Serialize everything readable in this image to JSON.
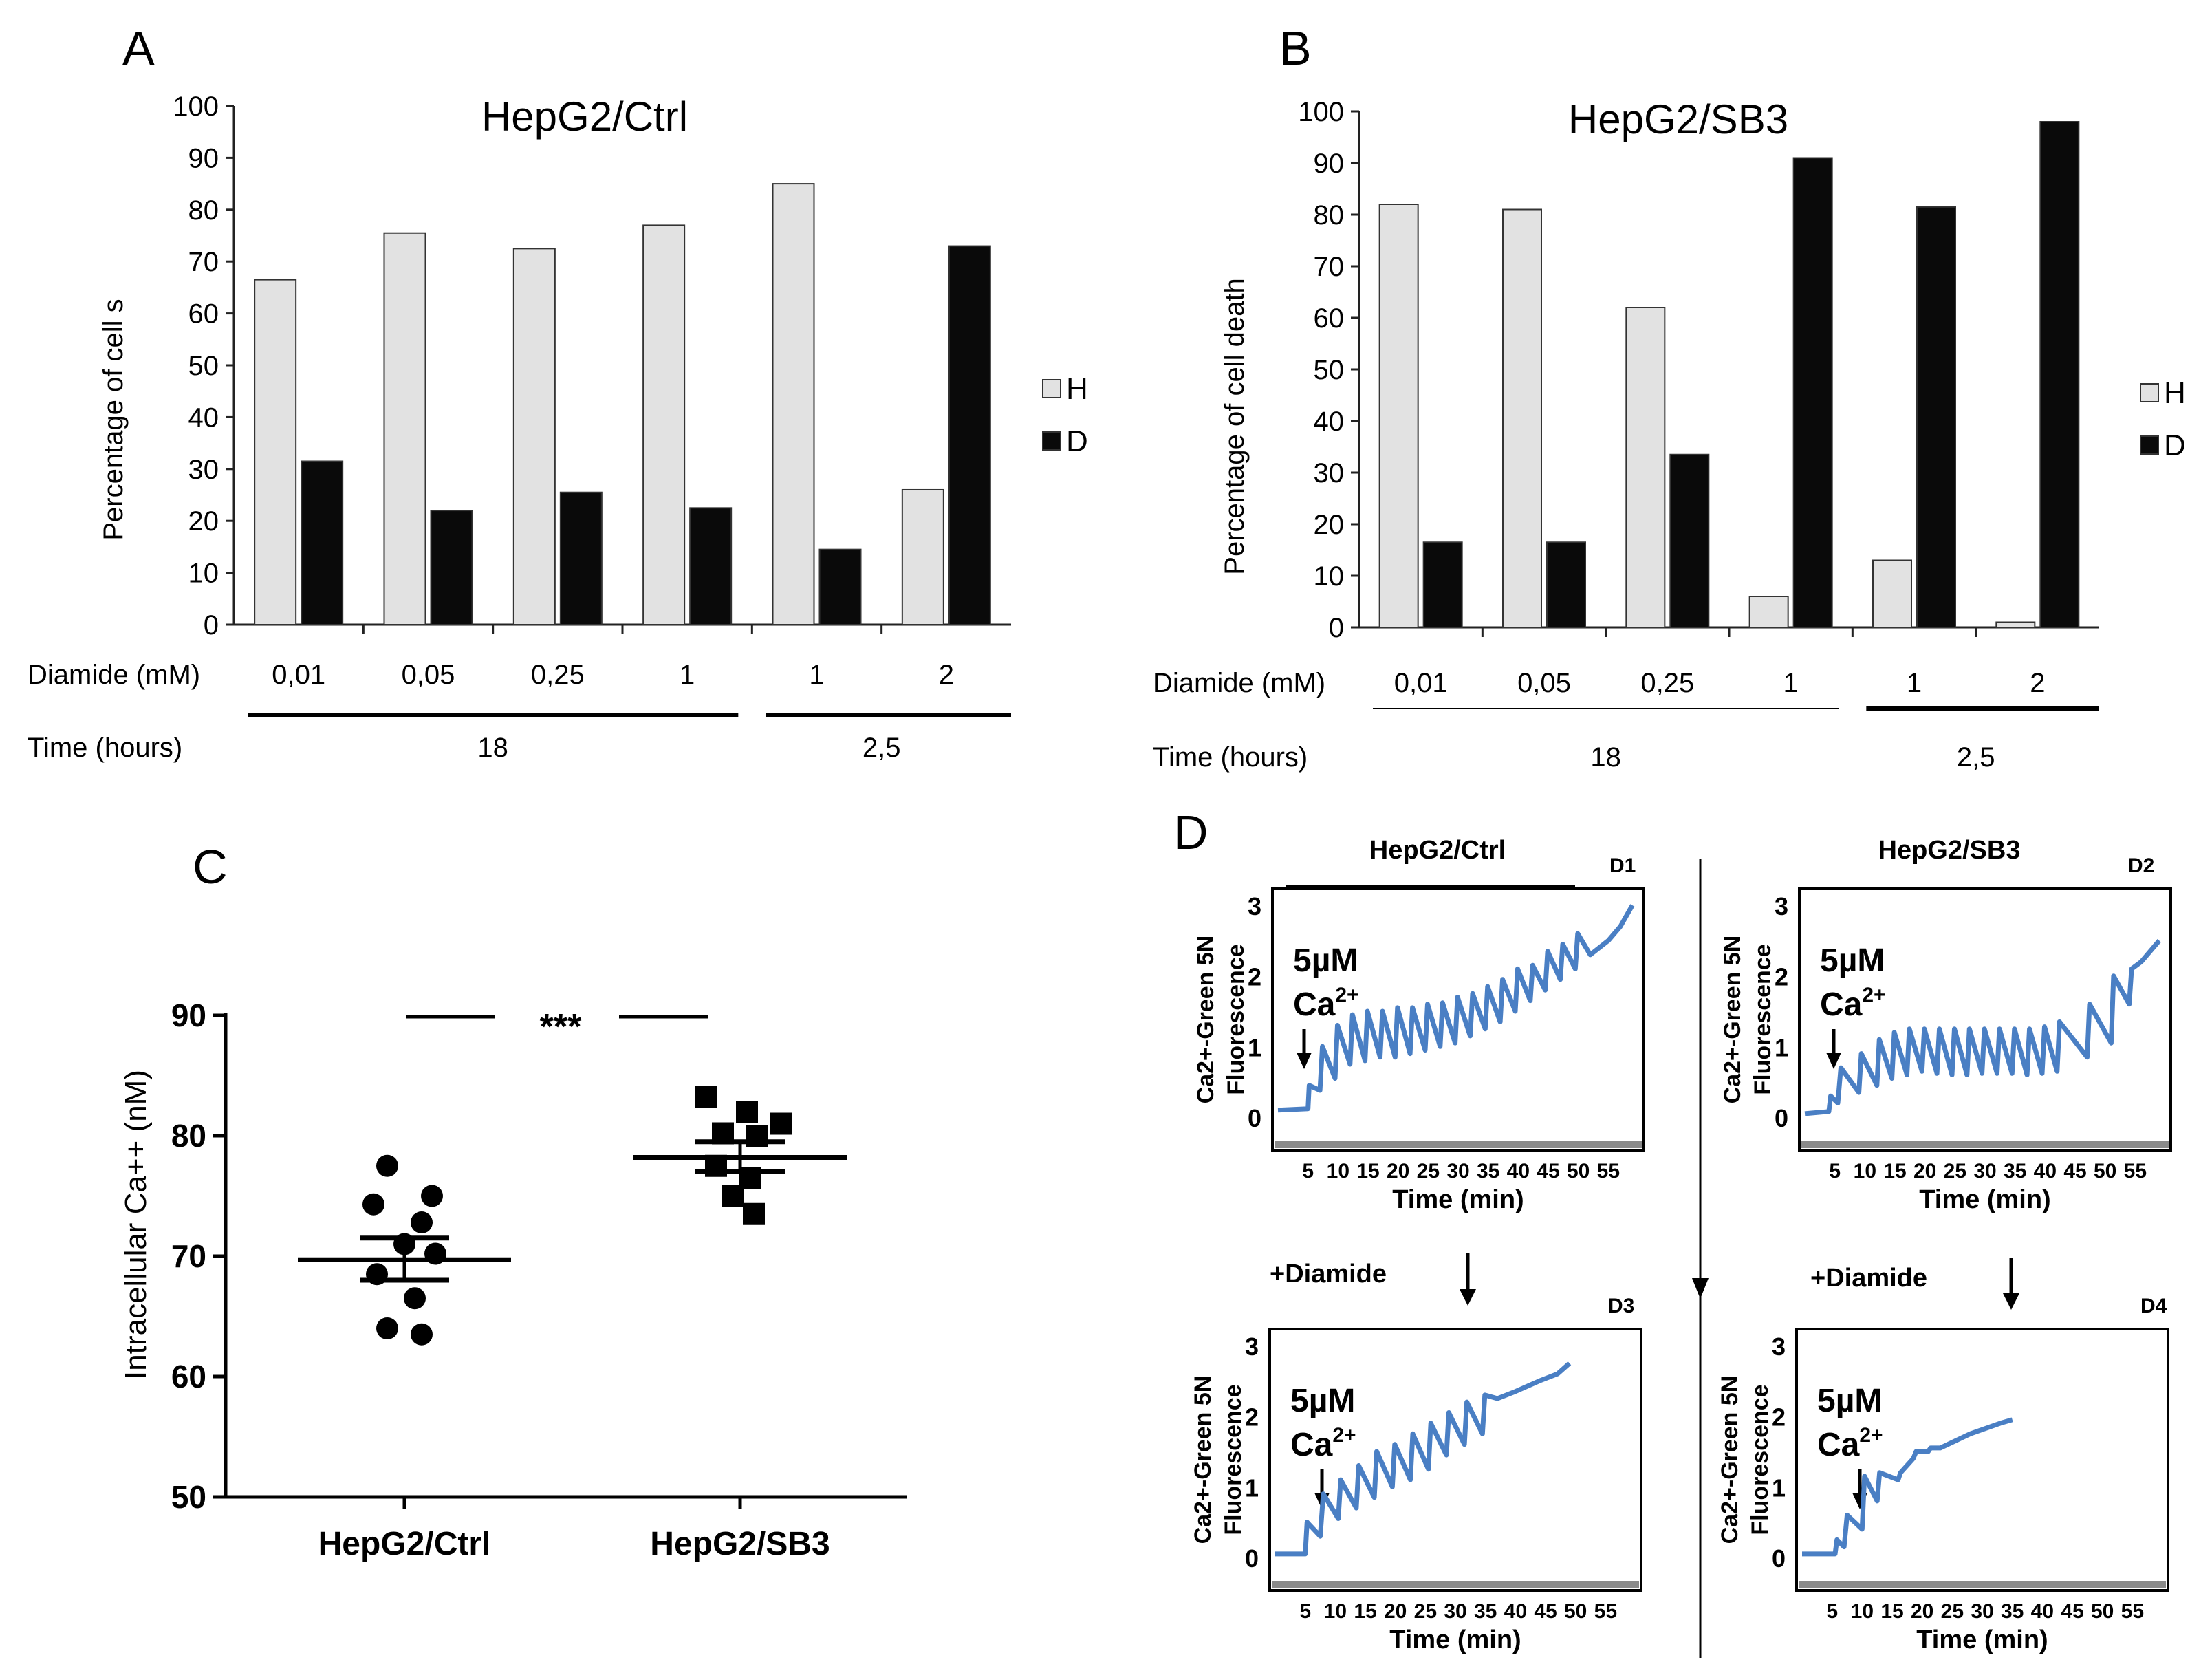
{
  "panel_letters": {
    "a": "A",
    "b": "B",
    "c": "C",
    "d": "D"
  },
  "colors": {
    "light_bar": "#e2e2e2",
    "dark_bar": "#0a0a0a",
    "trace": "#4a7fc4",
    "axis": "#222222",
    "frame_bottom": "#8a8a8a"
  },
  "row_labels": {
    "diamide": "Diamide (mM)",
    "time": "Time (hours)"
  },
  "chart_data": [
    {
      "id": "A",
      "type": "bar",
      "title": "HepG2/Ctrl",
      "ylabel": "Percentage  of  cell s",
      "ylim": [
        0,
        100
      ],
      "yticks": [
        "0",
        "10",
        "20",
        "30",
        "40",
        "50",
        "60",
        "70",
        "80",
        "90",
        "100"
      ],
      "categories": [
        "0,01",
        "0,05",
        "0,25",
        "1",
        "1",
        "2"
      ],
      "time_groups": [
        "18",
        "2,5"
      ],
      "series": [
        {
          "name": "H",
          "values": [
            66.5,
            75.5,
            72.5,
            77,
            85,
            26
          ]
        },
        {
          "name": "D",
          "values": [
            31.5,
            22,
            25.5,
            22.5,
            14.5,
            73
          ]
        }
      ],
      "legend": "right"
    },
    {
      "id": "B",
      "type": "bar",
      "title": "HepG2/SB3",
      "ylabel": "Percentage  of  cell death",
      "ylim": [
        0,
        100
      ],
      "yticks": [
        "0",
        "10",
        "20",
        "30",
        "40",
        "50",
        "60",
        "70",
        "80",
        "90",
        "100"
      ],
      "categories": [
        "0,01",
        "0,05",
        "0,25",
        "1",
        "1",
        "2"
      ],
      "time_groups": [
        "18",
        "2,5"
      ],
      "series": [
        {
          "name": "H",
          "values": [
            82,
            81,
            62,
            6,
            13,
            1
          ]
        },
        {
          "name": "D",
          "values": [
            16.5,
            16.5,
            33.5,
            91,
            81.5,
            98
          ]
        }
      ],
      "legend": "right"
    },
    {
      "id": "C",
      "type": "scatter",
      "ylabel": "Intracellular Ca++ (nM)",
      "ylim": [
        50,
        90
      ],
      "yticks": [
        "50",
        "60",
        "70",
        "80",
        "90"
      ],
      "categories": [
        "HepG2/Ctrl",
        "HepG2/SB3"
      ],
      "significance": "***",
      "groups": [
        {
          "name": "HepG2/Ctrl",
          "marker": "circle",
          "mean": 69.7,
          "sem_upper": 71.5,
          "sem_lower": 68.0,
          "points": [
            77.5,
            75.0,
            74.3,
            72.8,
            71.0,
            70.2,
            68.5,
            66.5,
            64.0,
            63.5
          ]
        },
        {
          "name": "HepG2/SB3",
          "marker": "square",
          "mean": 78.2,
          "sem_upper": 79.5,
          "sem_lower": 77.0,
          "points": [
            83.2,
            82.0,
            81.0,
            80.2,
            80.0,
            77.5,
            76.5,
            75.0,
            73.5
          ]
        }
      ]
    },
    {
      "id": "D",
      "type": "line",
      "subpanels": [
        {
          "tag": "D1",
          "header": "HepG2/Ctrl",
          "inset_top": "",
          "yticks": [
            "0",
            "1",
            "2",
            "3"
          ],
          "xticks": [
            "5",
            "10",
            "15",
            "20",
            "25",
            "30",
            "35",
            "40",
            "45",
            "50",
            "55"
          ],
          "xlabel": "Time (min)",
          "ylabel_line1": "Ca2+-Green 5N",
          "ylabel_line2": "Fluorescence",
          "annotation_line1": "5µM",
          "annotation_line2": "Ca",
          "annotation_sup": "2+",
          "x": [
            0,
            5,
            5.2,
            7,
            7.4,
            9.5,
            9.9,
            12,
            12.4,
            14.5,
            14.9,
            17,
            17.4,
            19.5,
            19.9,
            22,
            22.4,
            24.5,
            24.9,
            27,
            27.4,
            29.5,
            29.9,
            32,
            32.4,
            34.5,
            34.9,
            37,
            37.4,
            39.5,
            39.9,
            42,
            42.4,
            44.5,
            44.9,
            47,
            47.4,
            49.5,
            49.9,
            52,
            55,
            57,
            59
          ],
          "y": [
            0.1,
            0.12,
            0.45,
            0.38,
            1.0,
            0.55,
            1.3,
            0.75,
            1.45,
            0.8,
            1.5,
            0.85,
            1.5,
            0.85,
            1.55,
            0.9,
            1.55,
            0.95,
            1.6,
            1.0,
            1.62,
            1.05,
            1.7,
            1.15,
            1.75,
            1.25,
            1.85,
            1.35,
            1.95,
            1.5,
            2.1,
            1.65,
            2.15,
            1.8,
            2.35,
            1.95,
            2.45,
            2.1,
            2.6,
            2.3,
            2.5,
            2.7,
            3.0
          ]
        },
        {
          "tag": "D2",
          "header": "HepG2/SB3",
          "inset_top": "",
          "yticks": [
            "0",
            "1",
            "2",
            "3"
          ],
          "xticks": [
            "5",
            "10",
            "15",
            "20",
            "25",
            "30",
            "35",
            "40",
            "45",
            "50",
            "55"
          ],
          "xlabel": "Time (min)",
          "ylabel_line1": "Ca2+-Green 5N",
          "ylabel_line2": "Fluorescence",
          "annotation_line1": "5µM",
          "annotation_line2": "Ca",
          "annotation_sup": "2+",
          "x": [
            0,
            4,
            4.3,
            5.5,
            6,
            9,
            9.4,
            12,
            12.4,
            14.5,
            14.9,
            17,
            17.4,
            19.5,
            19.9,
            22,
            22.4,
            24.5,
            24.9,
            27,
            27.4,
            29.5,
            29.9,
            32,
            32.4,
            34.5,
            34.9,
            37,
            37.4,
            39.5,
            39.9,
            42,
            42.4,
            47,
            47.4,
            51,
            51.4,
            54,
            54.4,
            56,
            59
          ],
          "y": [
            0.05,
            0.08,
            0.3,
            0.2,
            0.7,
            0.35,
            0.9,
            0.45,
            1.1,
            0.55,
            1.2,
            0.6,
            1.25,
            0.65,
            1.25,
            0.62,
            1.25,
            0.6,
            1.25,
            0.6,
            1.25,
            0.62,
            1.25,
            0.62,
            1.25,
            0.62,
            1.25,
            0.6,
            1.25,
            0.62,
            1.28,
            0.65,
            1.35,
            0.85,
            1.6,
            1.05,
            2.0,
            1.6,
            2.1,
            2.2,
            2.5
          ]
        },
        {
          "tag": "D3",
          "header": "",
          "inset_top": "+Diamide",
          "yticks": [
            "0",
            "1",
            "2",
            "3"
          ],
          "xticks": [
            "5",
            "10",
            "15",
            "20",
            "25",
            "30",
            "35",
            "40",
            "45",
            "50",
            "55"
          ],
          "xlabel": "Time (min)",
          "ylabel_line1": "Ca2+-Green 5N",
          "ylabel_line2": "Fluorescence",
          "annotation_line1": "5µM",
          "annotation_line2": "Ca",
          "annotation_sup": "2+",
          "x": [
            0,
            5,
            5.3,
            7.5,
            8,
            10.5,
            10.9,
            13.5,
            13.9,
            16.5,
            16.9,
            19.5,
            19.9,
            22.5,
            22.9,
            25.5,
            25.9,
            28.5,
            28.9,
            31.5,
            31.9,
            34.5,
            34.9,
            37,
            40,
            44,
            47,
            49
          ],
          "y": [
            0.05,
            0.05,
            0.5,
            0.3,
            0.9,
            0.55,
            1.1,
            0.7,
            1.3,
            0.85,
            1.5,
            1.0,
            1.6,
            1.1,
            1.75,
            1.25,
            1.9,
            1.45,
            2.05,
            1.6,
            2.2,
            1.75,
            2.3,
            2.25,
            2.35,
            2.5,
            2.6,
            2.75
          ]
        },
        {
          "tag": "D4",
          "header": "",
          "inset_top": "+Diamide",
          "yticks": [
            "0",
            "1",
            "2",
            "3"
          ],
          "xticks": [
            "5",
            "10",
            "15",
            "20",
            "25",
            "30",
            "35",
            "40",
            "45",
            "50",
            "55"
          ],
          "xlabel": "Time (min)",
          "ylabel_line1": "Ca2+-Green 5N",
          "ylabel_line2": "Fluorescence",
          "annotation_line1": "5µM",
          "annotation_line2": "Ca",
          "annotation_sup": "2+",
          "x": [
            0,
            5.5,
            5.8,
            7,
            7.5,
            10,
            10.4,
            12.5,
            12.9,
            16,
            16.4,
            18.5,
            19,
            21,
            21.4,
            23,
            28,
            33,
            35
          ],
          "y": [
            0.05,
            0.05,
            0.25,
            0.15,
            0.6,
            0.4,
            1.15,
            0.8,
            1.2,
            1.1,
            1.2,
            1.4,
            1.5,
            1.5,
            1.55,
            1.55,
            1.75,
            1.9,
            1.95
          ]
        }
      ]
    }
  ]
}
